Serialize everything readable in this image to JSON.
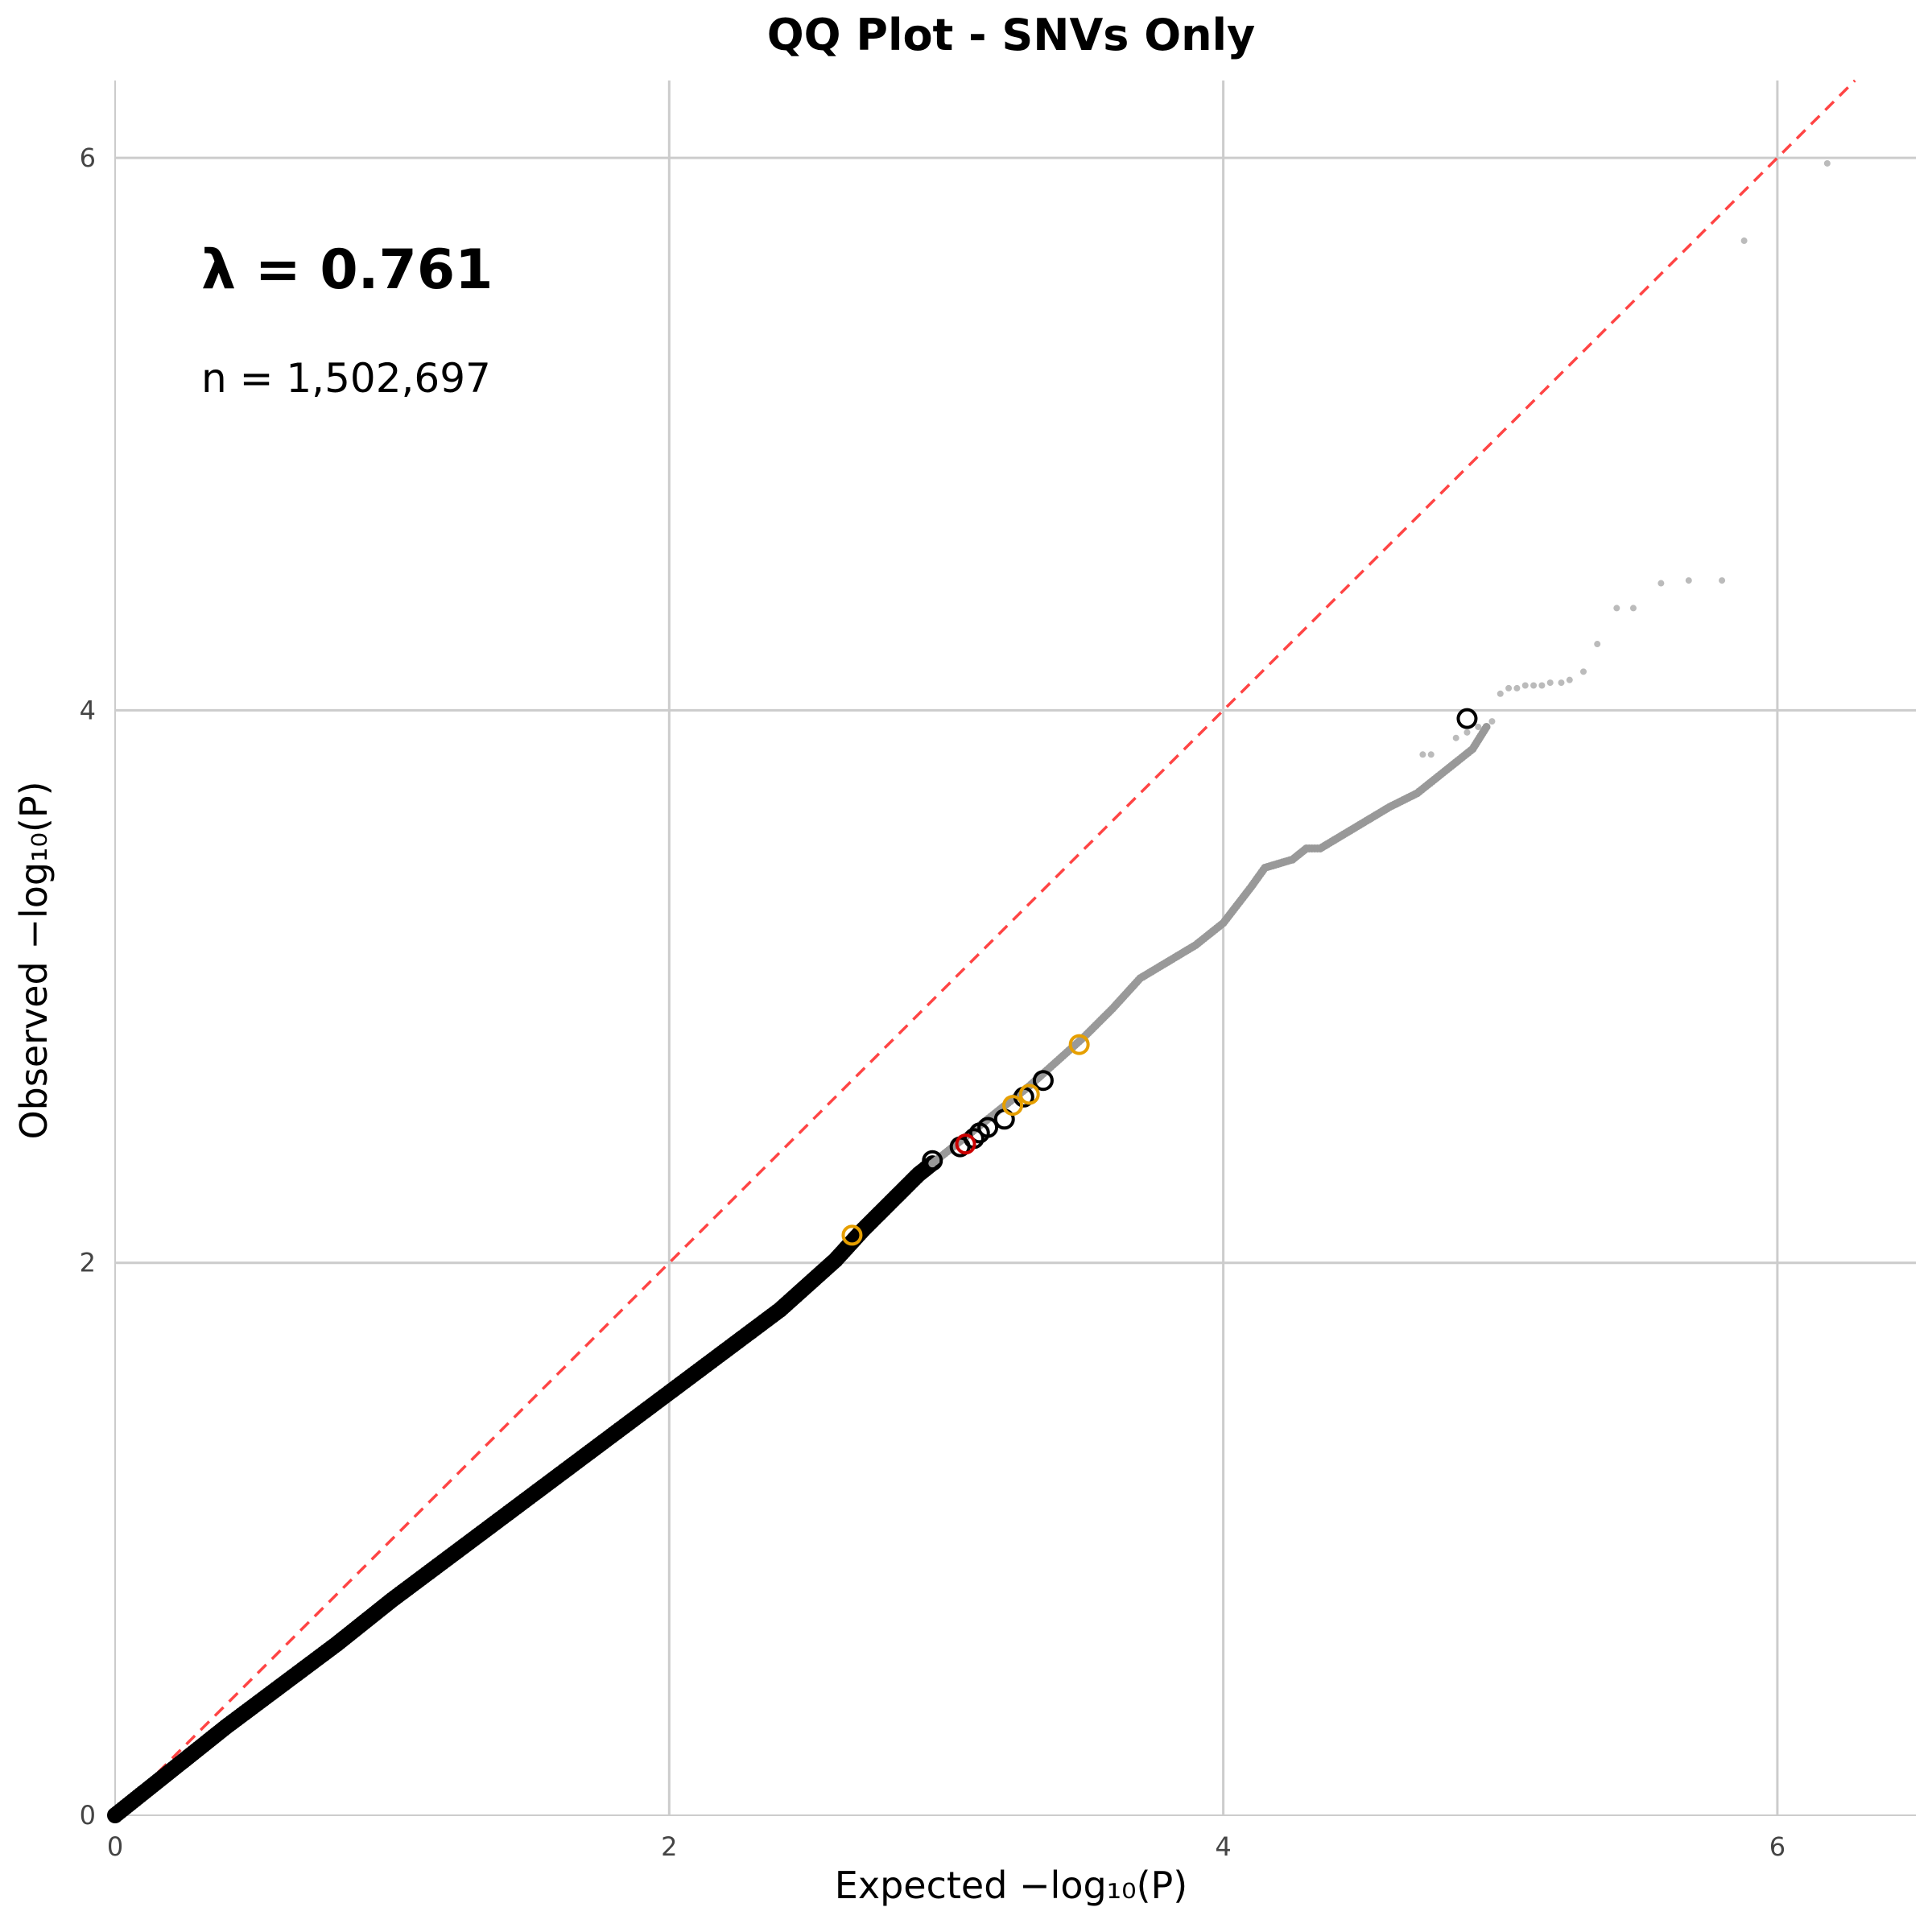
{
  "chart_data": {
    "type": "scatter",
    "title": "QQ Plot - SNVs Only",
    "xlabel": "Expected −log₁₀(P)",
    "ylabel": "Observed −log₁₀(P)",
    "xlim": [
      0,
      6.5
    ],
    "ylim": [
      0,
      6.28
    ],
    "x_ticks": [
      "0",
      "2",
      "4",
      "6"
    ],
    "y_ticks": [
      "0",
      "2",
      "4",
      "6"
    ],
    "grid": true,
    "annotations": {
      "lambda": "λ = 0.761",
      "n": "n = 1,502,697"
    },
    "reference_line": {
      "from": [
        0,
        0
      ],
      "to": [
        6.5,
        6.5
      ],
      "color": "#ff4444",
      "style": "dashed"
    },
    "colors": {
      "dense": "#000000",
      "tail": "#999999",
      "sparse": "#bbbbbb",
      "highlight_orange": "#e69f00",
      "highlight_red": "#cc0000"
    },
    "series": [
      {
        "role": "dense-black",
        "points": [
          [
            0,
            0
          ],
          [
            0.2,
            0.16
          ],
          [
            0.4,
            0.32
          ],
          [
            0.6,
            0.47
          ],
          [
            0.8,
            0.62
          ],
          [
            1.0,
            0.78
          ],
          [
            1.2,
            0.93
          ],
          [
            1.4,
            1.08
          ],
          [
            1.6,
            1.23
          ],
          [
            1.8,
            1.38
          ],
          [
            2.0,
            1.53
          ],
          [
            2.2,
            1.68
          ],
          [
            2.4,
            1.83
          ],
          [
            2.5,
            1.92
          ],
          [
            2.6,
            2.01
          ],
          [
            2.7,
            2.12
          ],
          [
            2.8,
            2.22
          ],
          [
            2.9,
            2.32
          ],
          [
            2.95,
            2.36
          ]
        ]
      },
      {
        "role": "grey-tail",
        "points": [
          [
            2.95,
            2.36
          ],
          [
            3.1,
            2.48
          ],
          [
            3.2,
            2.56
          ],
          [
            3.3,
            2.64
          ],
          [
            3.4,
            2.73
          ],
          [
            3.5,
            2.82
          ],
          [
            3.6,
            2.92
          ],
          [
            3.7,
            3.03
          ],
          [
            3.8,
            3.09
          ],
          [
            3.9,
            3.15
          ],
          [
            4.0,
            3.23
          ],
          [
            4.1,
            3.36
          ],
          [
            4.15,
            3.43
          ],
          [
            4.25,
            3.46
          ],
          [
            4.3,
            3.5
          ],
          [
            4.35,
            3.5
          ],
          [
            4.45,
            3.56
          ],
          [
            4.5,
            3.59
          ],
          [
            4.6,
            3.65
          ],
          [
            4.7,
            3.7
          ],
          [
            4.8,
            3.78
          ],
          [
            4.9,
            3.86
          ],
          [
            4.95,
            3.94
          ]
        ]
      },
      {
        "role": "sparse-grey",
        "points": [
          [
            4.72,
            3.84
          ],
          [
            4.75,
            3.84
          ],
          [
            4.84,
            3.9
          ],
          [
            4.88,
            3.92
          ],
          [
            4.92,
            3.94
          ],
          [
            4.97,
            3.96
          ],
          [
            5.0,
            4.06
          ],
          [
            5.03,
            4.08
          ],
          [
            5.06,
            4.08
          ],
          [
            5.09,
            4.09
          ],
          [
            5.12,
            4.09
          ],
          [
            5.15,
            4.09
          ],
          [
            5.18,
            4.1
          ],
          [
            5.22,
            4.1
          ],
          [
            5.25,
            4.11
          ],
          [
            5.3,
            4.14
          ],
          [
            5.35,
            4.24
          ],
          [
            5.42,
            4.37
          ],
          [
            5.48,
            4.37
          ],
          [
            5.58,
            4.46
          ],
          [
            5.68,
            4.47
          ],
          [
            5.8,
            4.47
          ],
          [
            5.88,
            5.7
          ],
          [
            6.18,
            5.98
          ]
        ]
      },
      {
        "role": "black-circles",
        "points": [
          [
            2.95,
            2.37
          ],
          [
            3.05,
            2.42
          ],
          [
            3.1,
            2.45
          ],
          [
            3.12,
            2.47
          ],
          [
            3.15,
            2.49
          ],
          [
            3.21,
            2.52
          ],
          [
            3.28,
            2.6
          ],
          [
            3.35,
            2.66
          ],
          [
            4.88,
            3.97
          ]
        ]
      },
      {
        "role": "orange-circles",
        "points": [
          [
            2.66,
            2.1
          ],
          [
            3.24,
            2.57
          ],
          [
            3.3,
            2.61
          ],
          [
            3.48,
            2.79
          ]
        ]
      },
      {
        "role": "red-circles",
        "points": [
          [
            3.07,
            2.43
          ]
        ]
      }
    ]
  }
}
